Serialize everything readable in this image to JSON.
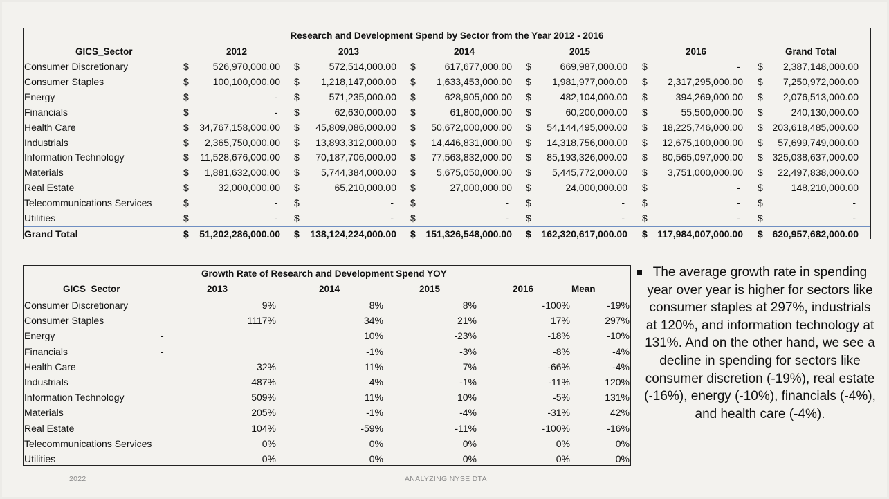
{
  "table1": {
    "title": "Research and Development Spend by Sector from the Year 2012 - 2016",
    "headers": [
      "GICS_Sector",
      "2012",
      "2013",
      "2014",
      "2015",
      "2016",
      "Grand Total"
    ],
    "currency": "$",
    "rows": [
      {
        "sector": "Consumer Discretionary",
        "values": [
          "526,970,000.00",
          "572,514,000.00",
          "617,677,000.00",
          "669,987,000.00",
          "-",
          "2,387,148,000.00"
        ]
      },
      {
        "sector": "Consumer Staples",
        "values": [
          "100,100,000.00",
          "1,218,147,000.00",
          "1,633,453,000.00",
          "1,981,977,000.00",
          "2,317,295,000.00",
          "7,250,972,000.00"
        ]
      },
      {
        "sector": "Energy",
        "values": [
          "-",
          "571,235,000.00",
          "628,905,000.00",
          "482,104,000.00",
          "394,269,000.00",
          "2,076,513,000.00"
        ]
      },
      {
        "sector": "Financials",
        "values": [
          "-",
          "62,630,000.00",
          "61,800,000.00",
          "60,200,000.00",
          "55,500,000.00",
          "240,130,000.00"
        ]
      },
      {
        "sector": "Health Care",
        "values": [
          "34,767,158,000.00",
          "45,809,086,000.00",
          "50,672,000,000.00",
          "54,144,495,000.00",
          "18,225,746,000.00",
          "203,618,485,000.00"
        ]
      },
      {
        "sector": "Industrials",
        "values": [
          "2,365,750,000.00",
          "13,893,312,000.00",
          "14,446,831,000.00",
          "14,318,756,000.00",
          "12,675,100,000.00",
          "57,699,749,000.00"
        ]
      },
      {
        "sector": "Information Technology",
        "values": [
          "11,528,676,000.00",
          "70,187,706,000.00",
          "77,563,832,000.00",
          "85,193,326,000.00",
          "80,565,097,000.00",
          "325,038,637,000.00"
        ]
      },
      {
        "sector": "Materials",
        "values": [
          "1,881,632,000.00",
          "5,744,384,000.00",
          "5,675,050,000.00",
          "5,445,772,000.00",
          "3,751,000,000.00",
          "22,497,838,000.00"
        ]
      },
      {
        "sector": "Real Estate",
        "values": [
          "32,000,000.00",
          "65,210,000.00",
          "27,000,000.00",
          "24,000,000.00",
          "-",
          "148,210,000.00"
        ]
      },
      {
        "sector": "Telecommunications Services",
        "values": [
          "-",
          "-",
          "-",
          "-",
          "-",
          "-"
        ]
      },
      {
        "sector": "Utilities",
        "values": [
          "-",
          "-",
          "-",
          "-",
          "-",
          "-"
        ]
      }
    ],
    "total": {
      "sector": "Grand Total",
      "values": [
        "51,202,286,000.00",
        "138,124,224,000.00",
        "151,326,548,000.00",
        "162,320,617,000.00",
        "117,984,007,000.00",
        "620,957,682,000.00"
      ]
    }
  },
  "table2": {
    "title": "Growth Rate of Research and Development Spend YOY",
    "headers": [
      "GICS_Sector",
      "2013",
      "2014",
      "2015",
      "2016",
      "Mean"
    ],
    "rows": [
      {
        "sector": "Consumer Discretionary",
        "dash": "",
        "values": [
          "9%",
          "8%",
          "8%",
          "-100%",
          "-19%"
        ]
      },
      {
        "sector": "Consumer Staples",
        "dash": "",
        "values": [
          "1117%",
          "34%",
          "21%",
          "17%",
          "297%"
        ]
      },
      {
        "sector": "Energy",
        "dash": "-",
        "values": [
          "",
          "10%",
          "-23%",
          "-18%",
          "-10%"
        ]
      },
      {
        "sector": "Financials",
        "dash": "-",
        "values": [
          "",
          "-1%",
          "-3%",
          "-8%",
          "-4%"
        ]
      },
      {
        "sector": "Health Care",
        "dash": "",
        "values": [
          "32%",
          "11%",
          "7%",
          "-66%",
          "-4%"
        ]
      },
      {
        "sector": "Industrials",
        "dash": "",
        "values": [
          "487%",
          "4%",
          "-1%",
          "-11%",
          "120%"
        ]
      },
      {
        "sector": "Information Technology",
        "dash": "",
        "values": [
          "509%",
          "11%",
          "10%",
          "-5%",
          "131%"
        ]
      },
      {
        "sector": "Materials",
        "dash": "",
        "values": [
          "205%",
          "-1%",
          "-4%",
          "-31%",
          "42%"
        ]
      },
      {
        "sector": "Real Estate",
        "dash": "",
        "values": [
          "104%",
          "-59%",
          "-11%",
          "-100%",
          "-16%"
        ]
      },
      {
        "sector": "Telecommunications Services",
        "dash": "",
        "values": [
          "0%",
          "0%",
          "0%",
          "0%",
          "0%"
        ]
      },
      {
        "sector": "Utilities",
        "dash": "",
        "values": [
          "0%",
          "0%",
          "0%",
          "0%",
          "0%"
        ]
      }
    ]
  },
  "notes": {
    "bullet_text": "The average growth rate in spending year over year is higher for sectors like consumer staples at 297%, industrials at 120%, and information technology at 131%. And on the other hand, we see a decline in spending for sectors like consumer discretion (-19%), real estate (-16%), energy (-10%), financials (-4%), and health care (-4%)."
  },
  "footer": {
    "left": "2022",
    "center": "ANALYZING NYSE DTA"
  }
}
